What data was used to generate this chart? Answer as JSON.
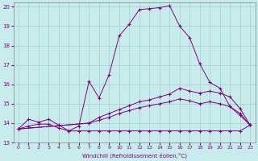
{
  "xlabel": "Windchill (Refroidissement éolien,°C)",
  "bg_color": "#c8ecec",
  "grid_color": "#9ecece",
  "line_color": "#800080",
  "xlim": [
    -0.5,
    23.5
  ],
  "ylim": [
    13,
    20.2
  ],
  "yticks": [
    13,
    14,
    15,
    16,
    17,
    18,
    19,
    20
  ],
  "xticks": [
    0,
    1,
    2,
    3,
    4,
    5,
    6,
    7,
    8,
    9,
    10,
    11,
    12,
    13,
    14,
    15,
    16,
    17,
    18,
    19,
    20,
    21,
    22,
    23
  ],
  "line1_x": [
    0,
    1,
    2,
    3,
    4,
    5,
    6,
    7,
    8,
    9,
    10,
    11,
    12,
    13,
    14,
    15,
    16,
    17,
    18,
    19,
    20,
    21,
    22,
    23
  ],
  "line1_y": [
    13.7,
    13.85,
    13.95,
    13.95,
    13.75,
    13.6,
    13.6,
    13.6,
    13.6,
    13.6,
    13.6,
    13.6,
    13.6,
    13.6,
    13.6,
    13.6,
    13.6,
    13.6,
    13.6,
    13.6,
    13.6,
    13.6,
    13.6,
    13.9
  ],
  "line2_x": [
    0,
    1,
    2,
    3,
    4,
    5,
    6,
    7,
    8,
    9,
    10,
    11,
    12,
    13,
    14,
    15,
    16,
    17,
    18,
    19,
    20,
    21,
    22,
    23
  ],
  "line2_y": [
    13.7,
    14.2,
    14.05,
    14.2,
    13.9,
    13.6,
    13.85,
    16.15,
    15.3,
    16.5,
    18.5,
    19.1,
    19.85,
    19.9,
    19.95,
    20.05,
    19.0,
    18.4,
    17.05,
    16.1,
    15.8,
    14.85,
    14.4,
    13.9
  ],
  "line3_x": [
    0,
    7,
    8,
    9,
    10,
    11,
    12,
    13,
    14,
    15,
    16,
    17,
    18,
    19,
    20,
    21,
    22,
    23
  ],
  "line3_y": [
    13.7,
    14.0,
    14.3,
    14.5,
    14.7,
    14.9,
    15.1,
    15.2,
    15.35,
    15.5,
    15.8,
    15.65,
    15.55,
    15.65,
    15.55,
    15.35,
    14.75,
    13.9
  ],
  "line4_x": [
    0,
    7,
    8,
    9,
    10,
    11,
    12,
    13,
    14,
    15,
    16,
    17,
    18,
    19,
    20,
    21,
    22,
    23
  ],
  "line4_y": [
    13.7,
    14.0,
    14.15,
    14.3,
    14.5,
    14.65,
    14.8,
    14.9,
    15.0,
    15.1,
    15.25,
    15.15,
    15.0,
    15.1,
    15.0,
    14.85,
    14.5,
    13.9
  ]
}
